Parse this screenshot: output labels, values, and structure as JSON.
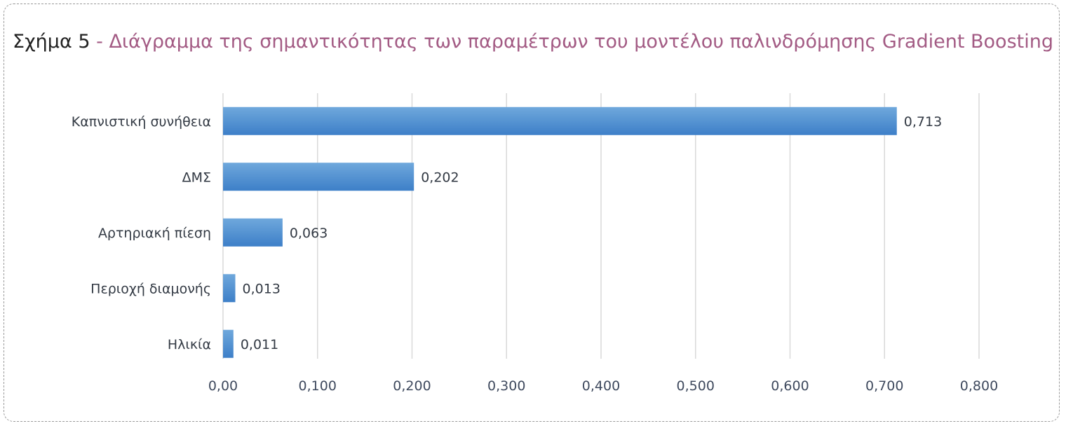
{
  "figure": {
    "prefix": "Σχήμα 5",
    "separator": " - ",
    "title": "Διάγραμμα της σημαντικότητας των παραμέτρων του μοντέλου παλινδρόμησης Gradient Boosting"
  },
  "chart_data": {
    "type": "bar",
    "orientation": "horizontal",
    "categories": [
      "Καπνιστική συνήθεια",
      "ΔΜΣ",
      "Αρτηριακή πίεση",
      "Περιοχή διαμονής",
      "Ηλικία"
    ],
    "values": [
      0.713,
      0.202,
      0.063,
      0.013,
      0.011
    ],
    "value_labels": [
      "0,713",
      "0,202",
      "0,063",
      "0,013",
      "0,011"
    ],
    "xlim": [
      0,
      0.8
    ],
    "ticks": [
      0,
      0.1,
      0.2,
      0.3,
      0.4,
      0.5,
      0.6,
      0.7,
      0.8
    ],
    "tick_labels": [
      "0,00",
      "0,100",
      "0,200",
      "0,300",
      "0,400",
      "0,500",
      "0,600",
      "0,700",
      "0,800"
    ],
    "grid": "vertical",
    "legend": "none",
    "bar_color_top": "#6fa8dc",
    "bar_color_bottom": "#3d7fc8",
    "grid_color": "#d9d9d9"
  }
}
